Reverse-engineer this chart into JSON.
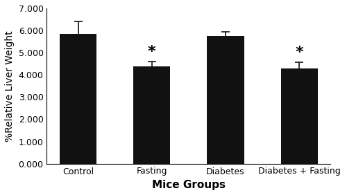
{
  "categories": [
    "Control",
    "Fasting",
    "Diabetes",
    "Diabetes + Fasting"
  ],
  "values": [
    5.85,
    4.38,
    5.75,
    4.3
  ],
  "errors": [
    0.55,
    0.22,
    0.18,
    0.28
  ],
  "bar_color": "#111111",
  "bar_width": 0.5,
  "xlabel": "Mice Groups",
  "ylabel": "%Relative Liver Weight",
  "ylim": [
    0,
    7.0
  ],
  "yticks": [
    0.0,
    1.0,
    2.0,
    3.0,
    4.0,
    5.0,
    6.0,
    7.0
  ],
  "significance": [
    false,
    true,
    false,
    true
  ],
  "sig_label": "*",
  "sig_fontsize": 16,
  "xlabel_fontsize": 11,
  "ylabel_fontsize": 10,
  "tick_fontsize": 9,
  "background_color": "#ffffff",
  "error_capsize": 4,
  "error_color": "#111111"
}
